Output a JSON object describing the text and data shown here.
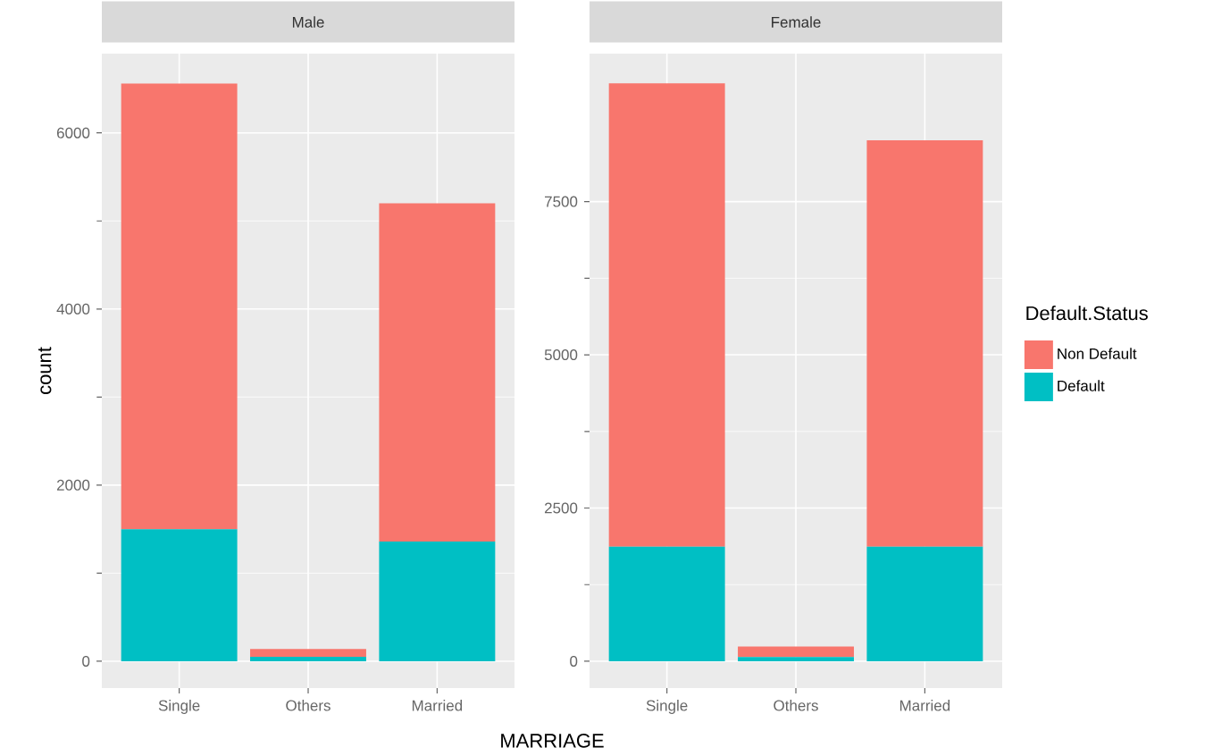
{
  "chart_data": [
    {
      "type": "bar",
      "title": "Male",
      "ylabel": "count",
      "xlabel": "MARRIAGE",
      "stacked": true,
      "grid": true,
      "legend": false,
      "categories": [
        "Single",
        "Others",
        "Married"
      ],
      "ylim": [
        -305,
        6900
      ],
      "yticks": [
        0,
        2000,
        4000,
        6000
      ],
      "series": [
        {
          "color": "#00bfc4",
          "values": [
            1500,
            50,
            1360
          ]
        },
        {
          "color": "#f8766d",
          "values": [
            5060,
            90,
            3840
          ]
        }
      ]
    },
    {
      "type": "bar",
      "title": "Female",
      "stacked": true,
      "grid": true,
      "legend": "right",
      "legend_title": "Default.Status",
      "categories": [
        "Single",
        "Others",
        "Married"
      ],
      "ylim": [
        -438,
        9915
      ],
      "yticks": [
        0,
        2500,
        5000,
        7500
      ],
      "series": [
        {
          "name": "Default",
          "color": "#00bfc4",
          "values": [
            1870,
            70,
            1870
          ]
        },
        {
          "name": "Non Default",
          "color": "#f8766d",
          "values": [
            7560,
            170,
            6630
          ]
        }
      ]
    }
  ]
}
